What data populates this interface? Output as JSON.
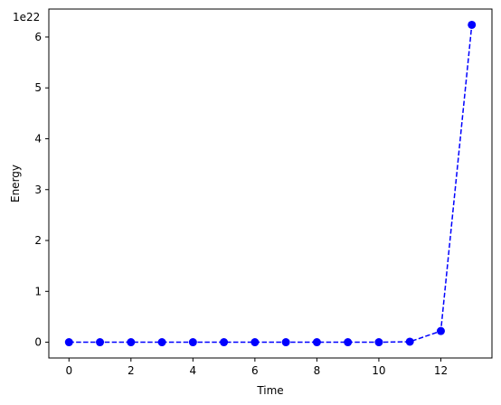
{
  "chart_data": {
    "type": "line",
    "title": "",
    "xlabel": "Time",
    "ylabel": "Energy",
    "offset_label": "1e22",
    "xlim": [
      -0.65,
      13.65
    ],
    "ylim": [
      -0.31,
      6.55
    ],
    "xticks": [
      0,
      2,
      4,
      6,
      8,
      10,
      12
    ],
    "xtick_labels": [
      "0",
      "2",
      "4",
      "6",
      "8",
      "10",
      "12"
    ],
    "yticks": [
      0,
      1,
      2,
      3,
      4,
      5,
      6
    ],
    "ytick_labels": [
      "0",
      "1",
      "2",
      "3",
      "4",
      "5",
      "6"
    ],
    "grid": false,
    "series": [
      {
        "name": "Energy",
        "color": "#0000ff",
        "line_style": "dashed",
        "marker": "circle",
        "x": [
          0,
          1,
          2,
          3,
          4,
          5,
          6,
          7,
          8,
          9,
          10,
          11,
          12,
          13
        ],
        "y": [
          0,
          0,
          0,
          0,
          0,
          0,
          0,
          0,
          0,
          0,
          0,
          0.01,
          0.22,
          6.24
        ]
      }
    ]
  }
}
